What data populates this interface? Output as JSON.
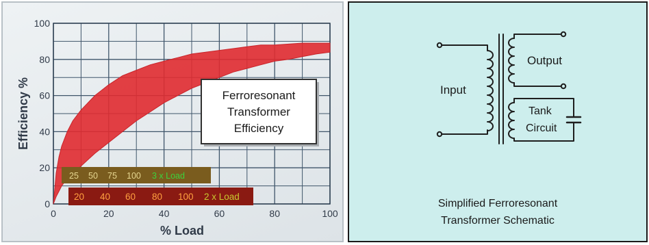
{
  "chart_data": {
    "type": "area",
    "xlabel": "% Load",
    "ylabel": "Efficiency %",
    "xlim": [
      0,
      100
    ],
    "ylim": [
      0,
      100
    ],
    "x_ticks": [
      0,
      20,
      40,
      60,
      80,
      100
    ],
    "y_ticks": [
      0,
      20,
      40,
      60,
      80,
      100
    ],
    "grid": true,
    "band": {
      "color": "#e02b30",
      "x": [
        0,
        1,
        2,
        3,
        5,
        7,
        10,
        15,
        20,
        25,
        30,
        35,
        40,
        45,
        50,
        55,
        60,
        65,
        70,
        75,
        80,
        85,
        90,
        95,
        100
      ],
      "upper": [
        0,
        17,
        26,
        32,
        40,
        46,
        52,
        60,
        66,
        71,
        74,
        77,
        79,
        81,
        83,
        84,
        85,
        86,
        87,
        88,
        88,
        88.5,
        89,
        89,
        89
      ],
      "lower": [
        0,
        4,
        7,
        10,
        14,
        17,
        21,
        28,
        34,
        40,
        46,
        51,
        56,
        60,
        64,
        67,
        70,
        73,
        75,
        77,
        79,
        80,
        81.5,
        83,
        84
      ]
    },
    "annotation": {
      "lines": [
        "Ferroresonant",
        "Transformer",
        "Efficiency"
      ]
    },
    "load_scales": [
      {
        "id": "3x",
        "background": "#7a5c1e",
        "value_color": "#e6d690",
        "label_color": "#3cd23c",
        "values": [
          "25",
          "50",
          "75",
          "100"
        ],
        "label": "3 x Load"
      },
      {
        "id": "2x",
        "background": "#8a1a12",
        "value_color": "#ffa040",
        "label_color": "#c8c830",
        "values": [
          "20",
          "40",
          "60",
          "80",
          "100"
        ],
        "label": "2 x Load"
      }
    ]
  },
  "schematic": {
    "input_label": "Input",
    "output_label": "Output",
    "tank_label_lines": [
      "Tank",
      "Circuit"
    ],
    "caption_lines": [
      "Simplified Ferroresonant",
      "Transformer Schematic"
    ]
  }
}
